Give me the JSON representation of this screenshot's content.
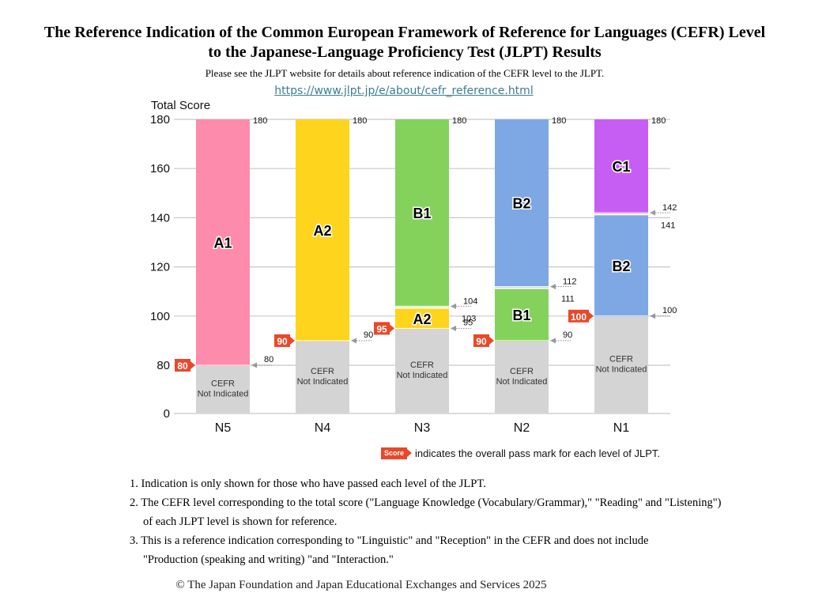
{
  "header": {
    "title_line1": "The Reference Indication of the Common European Framework of Reference for Languages (CEFR) Level",
    "title_line2": "to the Japanese-Language Proficiency Test (JLPT) Results",
    "subtitle": "Please see the JLPT website for details about reference indication of the CEFR level to the JLPT.",
    "link": "https://www.jlpt.jp/e/about/cefr_reference.html"
  },
  "chart_data": {
    "type": "bar",
    "stacked": true,
    "title": "The Reference Indication of the CEFR Level to the JLPT Results",
    "ylabel": "Total Score",
    "xlabel": "",
    "ylim": [
      0,
      180
    ],
    "yticks": [
      0,
      80,
      100,
      120,
      140,
      160,
      180
    ],
    "axis_break": "0 to 80 compressed",
    "grid": true,
    "categories": [
      "N5",
      "N4",
      "N3",
      "N2",
      "N1"
    ],
    "not_indicated_label": [
      "CEFR",
      "Not Indicated"
    ],
    "bars": [
      {
        "level": "N5",
        "pass_mark": 80,
        "segments": [
          {
            "label": "CEFR Not Indicated",
            "from": 0,
            "to": 80,
            "color": "#d4d4d4"
          },
          {
            "label": "A1",
            "from": 80,
            "to": 180,
            "color": "#fd8bab"
          }
        ],
        "boundary_labels": [
          {
            "value": 80,
            "text": "80"
          },
          {
            "value": 180,
            "text": "180"
          }
        ]
      },
      {
        "level": "N4",
        "pass_mark": 90,
        "segments": [
          {
            "label": "CEFR Not Indicated",
            "from": 0,
            "to": 90,
            "color": "#d4d4d4"
          },
          {
            "label": "A2",
            "from": 90,
            "to": 180,
            "color": "#ffd41c"
          }
        ],
        "boundary_labels": [
          {
            "value": 90,
            "text": "90"
          },
          {
            "value": 180,
            "text": "180"
          }
        ]
      },
      {
        "level": "N3",
        "pass_mark": 95,
        "segments": [
          {
            "label": "CEFR Not Indicated",
            "from": 0,
            "to": 95,
            "color": "#d4d4d4"
          },
          {
            "label": "A2",
            "from": 95,
            "to": 103,
            "color": "#ffd41c"
          },
          {
            "label": "B1",
            "from": 104,
            "to": 180,
            "color": "#84d25b"
          }
        ],
        "boundary_labels": [
          {
            "value": 95,
            "text": "95"
          },
          {
            "value": 103,
            "text": "103"
          },
          {
            "value": 104,
            "text": "104"
          },
          {
            "value": 180,
            "text": "180"
          }
        ]
      },
      {
        "level": "N2",
        "pass_mark": 90,
        "segments": [
          {
            "label": "CEFR Not Indicated",
            "from": 0,
            "to": 90,
            "color": "#d4d4d4"
          },
          {
            "label": "B1",
            "from": 90,
            "to": 111,
            "color": "#84d25b"
          },
          {
            "label": "B2",
            "from": 112,
            "to": 180,
            "color": "#7ea8e4"
          }
        ],
        "boundary_labels": [
          {
            "value": 90,
            "text": "90"
          },
          {
            "value": 111,
            "text": "111"
          },
          {
            "value": 112,
            "text": "112"
          },
          {
            "value": 180,
            "text": "180"
          }
        ]
      },
      {
        "level": "N1",
        "pass_mark": 100,
        "segments": [
          {
            "label": "CEFR Not Indicated",
            "from": 0,
            "to": 100,
            "color": "#d4d4d4"
          },
          {
            "label": "B2",
            "from": 100,
            "to": 141,
            "color": "#7ea8e4"
          },
          {
            "label": "C1",
            "from": 142,
            "to": 180,
            "color": "#c75ef4"
          }
        ],
        "boundary_labels": [
          {
            "value": 100,
            "text": "100"
          },
          {
            "value": 141,
            "text": "141"
          },
          {
            "value": 142,
            "text": "142"
          },
          {
            "value": 180,
            "text": "180"
          }
        ]
      }
    ],
    "pass_mark_color": "#e8482b"
  },
  "legend": {
    "tag": "Score",
    "text": "indicates the overall pass mark for each level of JLPT."
  },
  "notes": [
    "1. Indication is only shown for those who have passed each level of the JLPT.",
    "2. The CEFR level corresponding to the total score (\"Language Knowledge (Vocabulary/Grammar),\" \"Reading\" and \"Listening\")",
    "of each JLPT level is shown for reference.",
    "3. This is a reference indication corresponding to \"Linguistic\" and \"Reception\" in the CEFR and does not include",
    "\"Production (speaking and writing) \"and \"Interaction.\""
  ],
  "copyright": "© The Japan Foundation and Japan Educational Exchanges and Services 2025"
}
